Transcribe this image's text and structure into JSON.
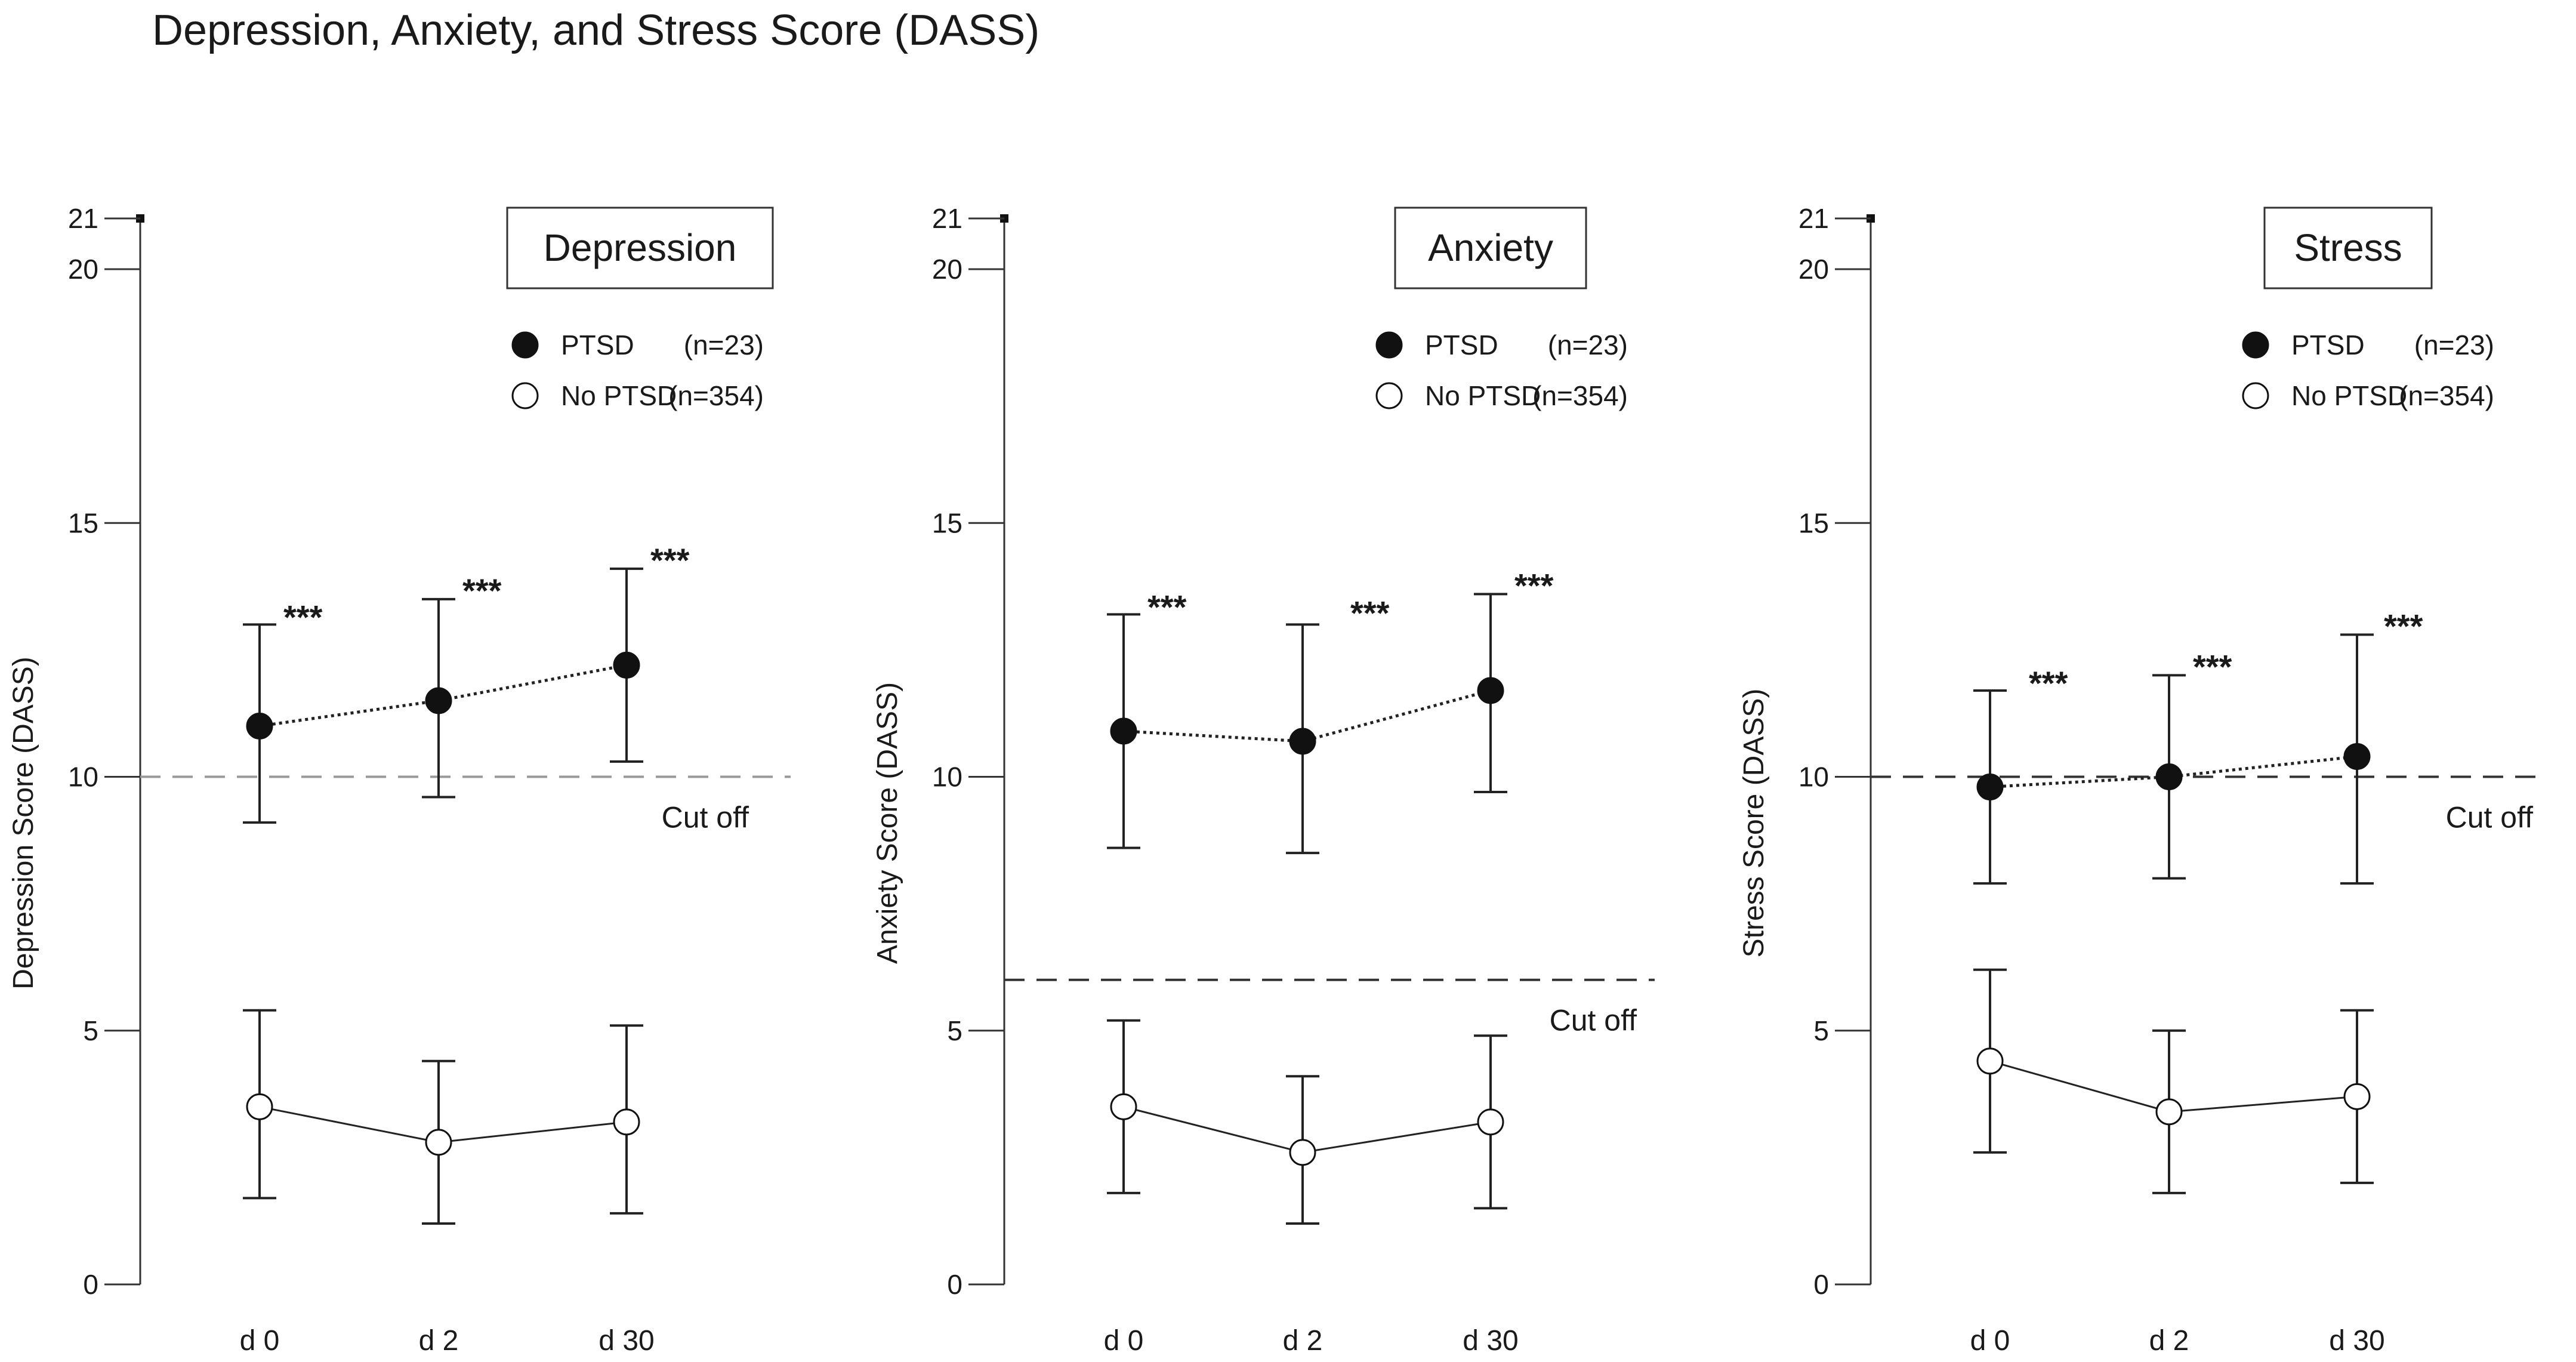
{
  "figure_title": "Depression, Anxiety, and Stress Score (DASS)",
  "colors": {
    "ptsd_fill": "#111111",
    "no_ptsd_fill": "#ffffff",
    "line": "#222222",
    "cutoff_depression": "#999999",
    "cutoff_other": "#333333"
  },
  "chart_data": [
    {
      "type": "line",
      "title": "Depression",
      "xlabel": "",
      "ylabel": "Depression Score (DASS)",
      "ylim": [
        0,
        21
      ],
      "yticks": [
        "0",
        "5",
        "10",
        "15",
        "20",
        "21"
      ],
      "ytick_values": [
        0,
        5,
        10,
        15,
        20,
        21
      ],
      "categories": [
        "d 0",
        "d 2",
        "d 30"
      ],
      "cutoff": {
        "value": 10,
        "label": "Cut off"
      },
      "significance": [
        "***",
        "***",
        "***"
      ],
      "series": [
        {
          "name": "PTSD",
          "n_label": "(n=23)",
          "values": [
            11.0,
            11.5,
            12.2
          ],
          "err_low": [
            9.1,
            9.6,
            10.3
          ],
          "err_high": [
            13.0,
            13.5,
            14.1
          ]
        },
        {
          "name": "No PTSD",
          "n_label": "(n=354)",
          "values": [
            3.5,
            2.8,
            3.2
          ],
          "err_low": [
            1.7,
            1.2,
            1.4
          ],
          "err_high": [
            5.4,
            4.4,
            5.1
          ]
        }
      ]
    },
    {
      "type": "line",
      "title": "Anxiety",
      "xlabel": "",
      "ylabel": "Anxiety Score (DASS)",
      "ylim": [
        0,
        21
      ],
      "yticks": [
        "0",
        "5",
        "10",
        "15",
        "20",
        "21"
      ],
      "ytick_values": [
        0,
        5,
        10,
        15,
        20,
        21
      ],
      "categories": [
        "d 0",
        "d 2",
        "d 30"
      ],
      "cutoff": {
        "value": 6,
        "label": "Cut off"
      },
      "significance": [
        "***",
        "***",
        "***"
      ],
      "series": [
        {
          "name": "PTSD",
          "n_label": "(n=23)",
          "values": [
            10.9,
            10.7,
            11.7
          ],
          "err_low": [
            8.6,
            8.5,
            9.7
          ],
          "err_high": [
            13.2,
            13.0,
            13.6
          ]
        },
        {
          "name": "No PTSD",
          "n_label": "(n=354)",
          "values": [
            3.5,
            2.6,
            3.2
          ],
          "err_low": [
            1.8,
            1.2,
            1.5
          ],
          "err_high": [
            5.2,
            4.1,
            4.9
          ]
        }
      ]
    },
    {
      "type": "line",
      "title": "Stress",
      "xlabel": "",
      "ylabel": "Stress Score (DASS)",
      "ylim": [
        0,
        21
      ],
      "yticks": [
        "0",
        "5",
        "10",
        "15",
        "20",
        "21"
      ],
      "ytick_values": [
        0,
        5,
        10,
        15,
        20,
        21
      ],
      "categories": [
        "d 0",
        "d 2",
        "d 30"
      ],
      "cutoff": {
        "value": 10,
        "label": "Cut off"
      },
      "significance": [
        "***",
        "***",
        "***"
      ],
      "series": [
        {
          "name": "PTSD",
          "n_label": "(n=23)",
          "values": [
            9.8,
            10.0,
            10.4
          ],
          "err_low": [
            7.9,
            8.0,
            7.9
          ],
          "err_high": [
            11.7,
            12.0,
            12.8
          ]
        },
        {
          "name": "No PTSD",
          "n_label": "(n=354)",
          "values": [
            4.4,
            3.4,
            3.7
          ],
          "err_low": [
            2.6,
            1.8,
            2.0
          ],
          "err_high": [
            6.2,
            5.0,
            5.4
          ]
        }
      ]
    }
  ]
}
